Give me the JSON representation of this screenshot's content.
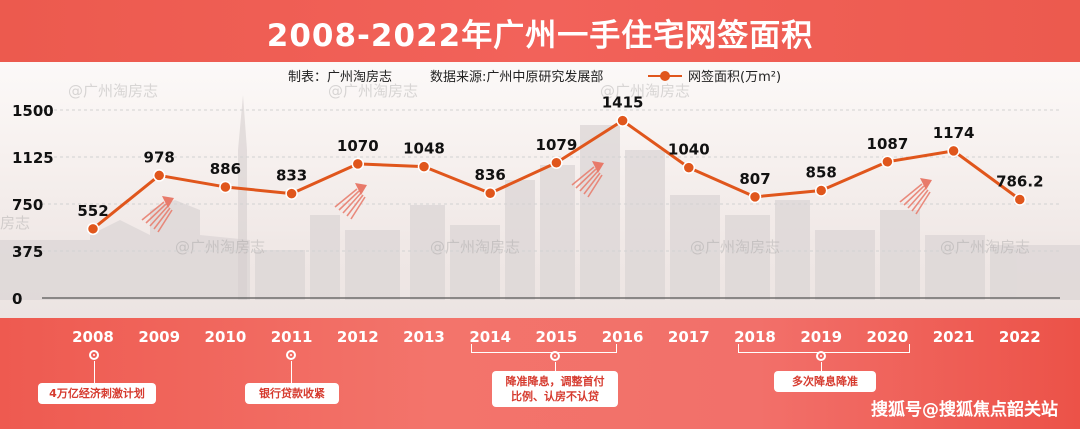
{
  "chart_data": {
    "type": "line",
    "title": "2008-2022年广州一手住宅网签面积",
    "categories": [
      "2008",
      "2009",
      "2010",
      "2011",
      "2012",
      "2013",
      "2014",
      "2015",
      "2016",
      "2017",
      "2018",
      "2019",
      "2020",
      "2021",
      "2022"
    ],
    "series": [
      {
        "name": "网签面积(万m²)",
        "values": [
          552,
          978,
          886,
          833,
          1070,
          1048,
          836,
          1079,
          1415,
          1040,
          807,
          858,
          1087,
          1174,
          786.2
        ]
      }
    ],
    "data_labels": [
      "552",
      "978",
      "886",
      "833",
      "1070",
      "1048",
      "836",
      "1079",
      "1415",
      "1040",
      "807",
      "858",
      "1087",
      "1174",
      "786.2"
    ],
    "yticks": [
      "1500",
      "1125",
      "750",
      "375",
      "0"
    ],
    "ylim": [
      0,
      1500
    ],
    "grid": true,
    "legend": "top-right",
    "color": "#e0561c"
  },
  "header": {
    "made_by": "制表：广州淘房志",
    "source": "数据来源:广州中原研究发展部"
  },
  "policies": [
    {
      "label": "4万亿经济刺激计划"
    },
    {
      "label": "银行贷款收紧"
    },
    {
      "label": "降准降息，调整首付比例、认房不认贷"
    },
    {
      "label": "多次降息降准"
    }
  ],
  "policy_lines": [
    [
      "4万亿经济刺激计划"
    ],
    [
      "银行贷款收紧"
    ],
    [
      "降准降息，调整首付",
      "比例、认房不认贷"
    ],
    [
      "多次降息降准"
    ]
  ],
  "watermarks": [
    "@广州淘房志",
    "@广州淘房志",
    "@广州淘房志",
    "@广州淘房志",
    "@广州淘房志",
    "@广州淘房志",
    "@广州淘房志",
    "@广州淘房志"
  ],
  "credit": "搜狐号@搜狐焦点韶关站",
  "colors": {
    "accent": "#e0561c",
    "banner": "#ee5a50"
  }
}
